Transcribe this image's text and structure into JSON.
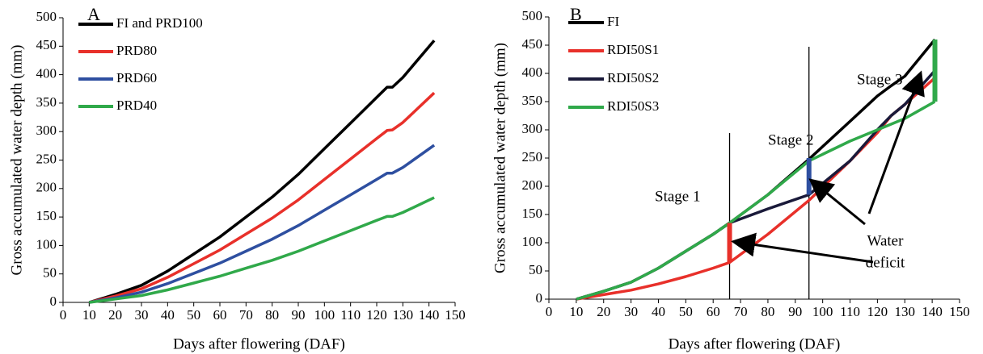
{
  "chart_data": [
    {
      "type": "line",
      "panel_label": "A",
      "xlabel": "Days after flowering (DAF)",
      "ylabel": "Gross accumulated water depth (mm)",
      "x": [
        10,
        20,
        30,
        40,
        50,
        60,
        70,
        80,
        90,
        100,
        110,
        120,
        124,
        126,
        130,
        142
      ],
      "series": [
        {
          "name": "FI and PRD100",
          "color": "#000000",
          "values": [
            0,
            14,
            30,
            55,
            85,
            115,
            150,
            185,
            225,
            270,
            315,
            360,
            378,
            378,
            395,
            460
          ]
        },
        {
          "name": "PRD80",
          "color": "#e8302a",
          "values": [
            0,
            11,
            24,
            44,
            68,
            92,
            120,
            148,
            180,
            216,
            252,
            288,
            302,
            303,
            316,
            368
          ]
        },
        {
          "name": "PRD60",
          "color": "#2e4fa0",
          "values": [
            0,
            8,
            18,
            33,
            51,
            69,
            90,
            111,
            135,
            162,
            189,
            216,
            227,
            227,
            237,
            276
          ]
        },
        {
          "name": "PRD40",
          "color": "#30a94a",
          "values": [
            0,
            6,
            12,
            22,
            34,
            46,
            60,
            74,
            90,
            108,
            126,
            144,
            151,
            151,
            158,
            184
          ]
        }
      ],
      "xlim": [
        0,
        150
      ],
      "xticks": [
        0,
        10,
        20,
        30,
        40,
        50,
        60,
        70,
        80,
        90,
        100,
        110,
        120,
        130,
        140,
        150
      ],
      "ylim": [
        0,
        500
      ],
      "yticks": [
        0,
        50,
        100,
        150,
        200,
        250,
        300,
        350,
        400,
        450,
        500
      ],
      "grid": false,
      "legend": "upper left"
    },
    {
      "type": "line",
      "panel_label": "B",
      "xlabel": "Days after flowering (DAF)",
      "ylabel": "Gross accumulated water depth (mm)",
      "x": [
        10,
        20,
        30,
        40,
        50,
        60,
        66,
        80,
        95,
        110,
        120,
        125,
        130,
        141
      ],
      "series": [
        {
          "name": "FI",
          "color": "#000000",
          "values": [
            0,
            14,
            30,
            55,
            85,
            115,
            135,
            185,
            248,
            315,
            360,
            378,
            395,
            460
          ]
        },
        {
          "name": "RDI50S1",
          "color": "#e8302a",
          "values": [
            0,
            8,
            16,
            27,
            40,
            55,
            65,
            115,
            175,
            245,
            295,
            325,
            345,
            392
          ]
        },
        {
          "name": "RDI50S2",
          "color": "#1a1a3a",
          "values": [
            0,
            14,
            30,
            55,
            85,
            115,
            135,
            160,
            185,
            245,
            300,
            325,
            345,
            405
          ]
        },
        {
          "name": "RDI50S3",
          "color": "#30a94a",
          "values": [
            0,
            14,
            30,
            55,
            85,
            115,
            135,
            185,
            245,
            280,
            300,
            310,
            320,
            350
          ]
        }
      ],
      "deficit_markers": [
        {
          "x": 66,
          "from": 65,
          "to": 135,
          "color": "#e8302a"
        },
        {
          "x": 95,
          "from": 185,
          "to": 250,
          "color": "#2e4fa0"
        },
        {
          "x": 141,
          "from": 350,
          "to": 460,
          "color": "#30a94a"
        }
      ],
      "stage_lines": [
        66,
        95
      ],
      "annotations": [
        "Stage 1",
        "Stage 2",
        "Stage 3",
        "Water",
        "deficit"
      ],
      "xlim": [
        0,
        150
      ],
      "xticks": [
        0,
        10,
        20,
        30,
        40,
        50,
        60,
        70,
        80,
        90,
        100,
        110,
        120,
        130,
        140,
        150
      ],
      "ylim": [
        0,
        500
      ],
      "yticks": [
        0,
        50,
        100,
        150,
        200,
        250,
        300,
        350,
        400,
        450,
        500
      ],
      "grid": false,
      "legend": "upper left"
    }
  ]
}
